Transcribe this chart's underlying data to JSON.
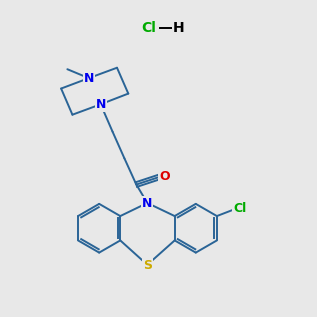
{
  "bg_color": "#e8e8e8",
  "bond_color": "#2a6496",
  "N_color": "#0000ee",
  "O_color": "#dd0000",
  "S_color": "#ccaa00",
  "Cl_color": "#00aa00",
  "text_color": "#000000",
  "lw": 1.4
}
